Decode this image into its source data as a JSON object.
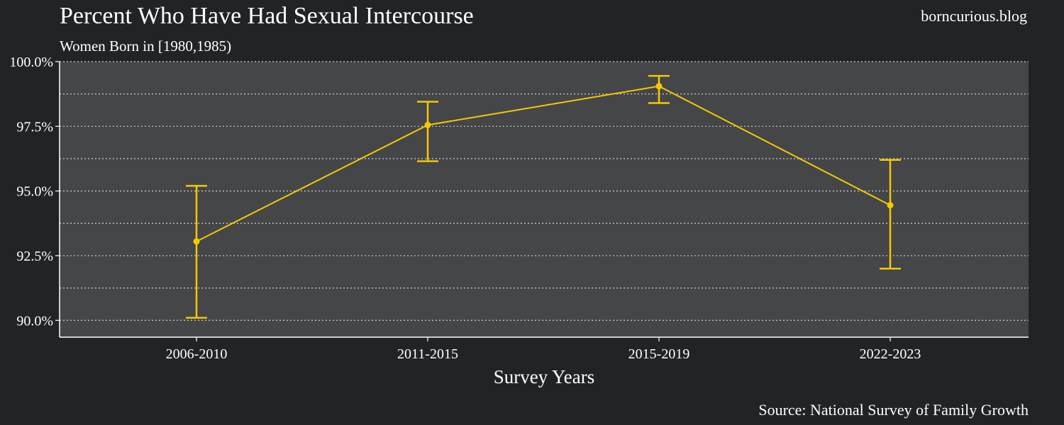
{
  "header": {
    "title": "Percent Who Have Had Sexual Intercourse",
    "subtitle": "Women Born in [1980,1985)",
    "brand": "borncurious.blog"
  },
  "footer": {
    "caption": "Source: National Survey of Family Growth"
  },
  "colors": {
    "background": "#222325",
    "plot_background": "#454648",
    "series": "#f5c800",
    "grid": "#d0d0d0",
    "text": "#ffffff"
  },
  "chart_data": {
    "type": "line",
    "categories": [
      "2006-2010",
      "2011-2015",
      "2015-2019",
      "2022-2023"
    ],
    "series": [
      {
        "values": [
          93.05,
          97.55,
          99.05,
          94.45
        ],
        "error_low": [
          90.1,
          96.15,
          98.4,
          92.0
        ],
        "error_high": [
          95.2,
          98.45,
          99.45,
          96.2
        ]
      }
    ],
    "xlabel": "Survey Years",
    "ylabel": "",
    "ylim": [
      89.35,
      100.0
    ],
    "yticks": [
      90.0,
      92.5,
      95.0,
      97.5,
      100.0
    ],
    "ytick_labels": [
      "90.0%",
      "92.5%",
      "95.0%",
      "97.5%",
      "100.0%"
    ],
    "minor_grid": [
      91.25,
      93.75,
      96.25,
      98.75
    ],
    "grid": true,
    "error_bars": true
  }
}
